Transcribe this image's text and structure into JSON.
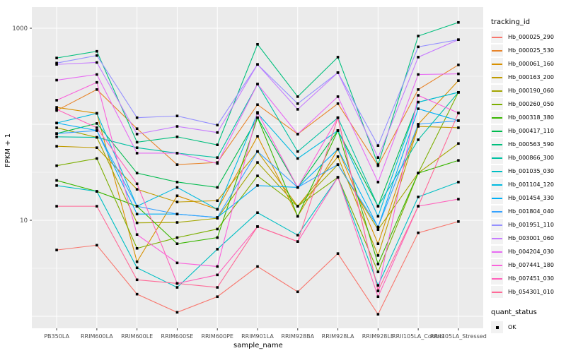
{
  "figure": {
    "xlabel": "sample_name",
    "ylabel": "FPKM + 1"
  },
  "legend": {
    "tracking_title": "tracking_id",
    "quant_title": "quant_status",
    "quant_ok_label": "OK"
  },
  "chart_data": {
    "type": "line",
    "title": "",
    "xlabel": "sample_name",
    "ylabel": "FPKM + 1",
    "y_scale": "log10",
    "ylim": [
      0.7,
      1700
    ],
    "y_tick_labels": [
      "1000",
      "10"
    ],
    "y_tick_values": [
      1000,
      10
    ],
    "y_major_gridlines": [
      1,
      10,
      100,
      1000
    ],
    "y_minor_gridlines": [
      3.162,
      31.62,
      316.2
    ],
    "panel_background": "#EBEBEB",
    "grid_color": "#FFFFFF",
    "marker": {
      "shape": "square",
      "color": "#000000",
      "legend_label": "OK"
    },
    "legend_position": "right",
    "categories": [
      "PB350LA",
      "RRIM600LA",
      "RRIM600LE",
      "RRIM600SE",
      "RRIM600PE",
      "RRIM901LA",
      "RRIM928BA",
      "RRIM928LA",
      "RRIM928LE",
      "RRII105LA_Control",
      "RRII105LA_Stressed"
    ],
    "series": [
      {
        "name": "Hb_000025_290",
        "color": "#F8766D",
        "values": [
          4.9,
          5.5,
          1.7,
          1.1,
          1.6,
          3.3,
          1.8,
          4.5,
          1.05,
          7.4,
          9.7
        ]
      },
      {
        "name": "Hb_000025_530",
        "color": "#E8842A",
        "values": [
          139,
          230,
          90,
          38,
          40,
          160,
          79,
          164,
          37,
          230,
          415
        ]
      },
      {
        "name": "Hb_000061_160",
        "color": "#D89000",
        "values": [
          150,
          130,
          3.7,
          18,
          13,
          75,
          11,
          55,
          5.7,
          100,
          285
        ]
      },
      {
        "name": "Hb_000163_200",
        "color": "#C09B00",
        "values": [
          59,
          57,
          21,
          15.5,
          16,
          52,
          14,
          46,
          4.3,
          95,
          92
        ]
      },
      {
        "name": "Hb_000190_060",
        "color": "#A3A500",
        "values": [
          92,
          73,
          9.4,
          9.5,
          10.5,
          40,
          14,
          38,
          8.0,
          31,
          63
        ]
      },
      {
        "name": "Hb_000260_050",
        "color": "#7CAE00",
        "values": [
          37,
          44,
          5.1,
          6.6,
          8.1,
          29,
          14,
          28,
          2.9,
          31,
          215
        ]
      },
      {
        "name": "Hb_000318_380",
        "color": "#39B600",
        "values": [
          26,
          20,
          14,
          5.7,
          6.6,
          117,
          11,
          86,
          3.5,
          31,
          42
        ]
      },
      {
        "name": "Hb_000417_110",
        "color": "#00BB4E",
        "values": [
          80,
          102,
          31,
          25,
          22,
          117,
          22,
          86,
          14,
          170,
          215
        ]
      },
      {
        "name": "Hb_000563_590",
        "color": "#00BF7D",
        "values": [
          490,
          575,
          65,
          74,
          61,
          680,
          194,
          500,
          38,
          830,
          1150
        ]
      },
      {
        "name": "Hb_000866_300",
        "color": "#00C1A3",
        "values": [
          74,
          73,
          57,
          50,
          45,
          262,
          52,
          117,
          14,
          69,
          215
        ]
      },
      {
        "name": "Hb_001035_030",
        "color": "#00BFC4",
        "values": [
          23,
          20,
          3.2,
          2.0,
          5.0,
          12,
          7.0,
          28,
          2.1,
          17.5,
          25
        ]
      },
      {
        "name": "Hb_001104_120",
        "color": "#00BAE0",
        "values": [
          103,
          130,
          14,
          22,
          13,
          130,
          44,
          86,
          11,
          170,
          215
        ]
      },
      {
        "name": "Hb_001454_330",
        "color": "#00B0F6",
        "values": [
          103,
          86,
          11.6,
          11.6,
          10.7,
          23,
          22,
          55,
          8.5,
          145,
          109
        ]
      },
      {
        "name": "Hb_001804_040",
        "color": "#35A2FF",
        "values": [
          80,
          86,
          14,
          11.6,
          10.7,
          52,
          22,
          38,
          8.5,
          100,
          109
        ]
      },
      {
        "name": "Hb_001951_110",
        "color": "#9590FF",
        "values": [
          434,
          520,
          117,
          122,
          98,
          420,
          164,
          345,
          60,
          640,
          760
        ]
      },
      {
        "name": "Hb_003001_060",
        "color": "#C77CFF",
        "values": [
          420,
          440,
          79,
          95,
          82,
          420,
          143,
          345,
          45,
          500,
          760
        ]
      },
      {
        "name": "Hb_004204_030",
        "color": "#E76BF3",
        "values": [
          288,
          330,
          50,
          50,
          39,
          262,
          79,
          194,
          25,
          330,
          335
        ]
      },
      {
        "name": "Hb_007441_180",
        "color": "#FA62DB",
        "values": [
          178,
          273,
          7.1,
          3.6,
          3.3,
          133,
          22,
          117,
          1.84,
          200,
          131
        ]
      },
      {
        "name": "Hb_007451_030",
        "color": "#FF62BC",
        "values": [
          143,
          92,
          24,
          2.2,
          2.7,
          8.6,
          6.0,
          28,
          1.6,
          14,
          16.6
        ]
      },
      {
        "name": "Hb_054301_010",
        "color": "#FF6A98",
        "values": [
          14,
          14,
          2.4,
          2.2,
          2.0,
          8.6,
          6.0,
          117,
          1.84,
          14,
          131
        ]
      }
    ]
  }
}
